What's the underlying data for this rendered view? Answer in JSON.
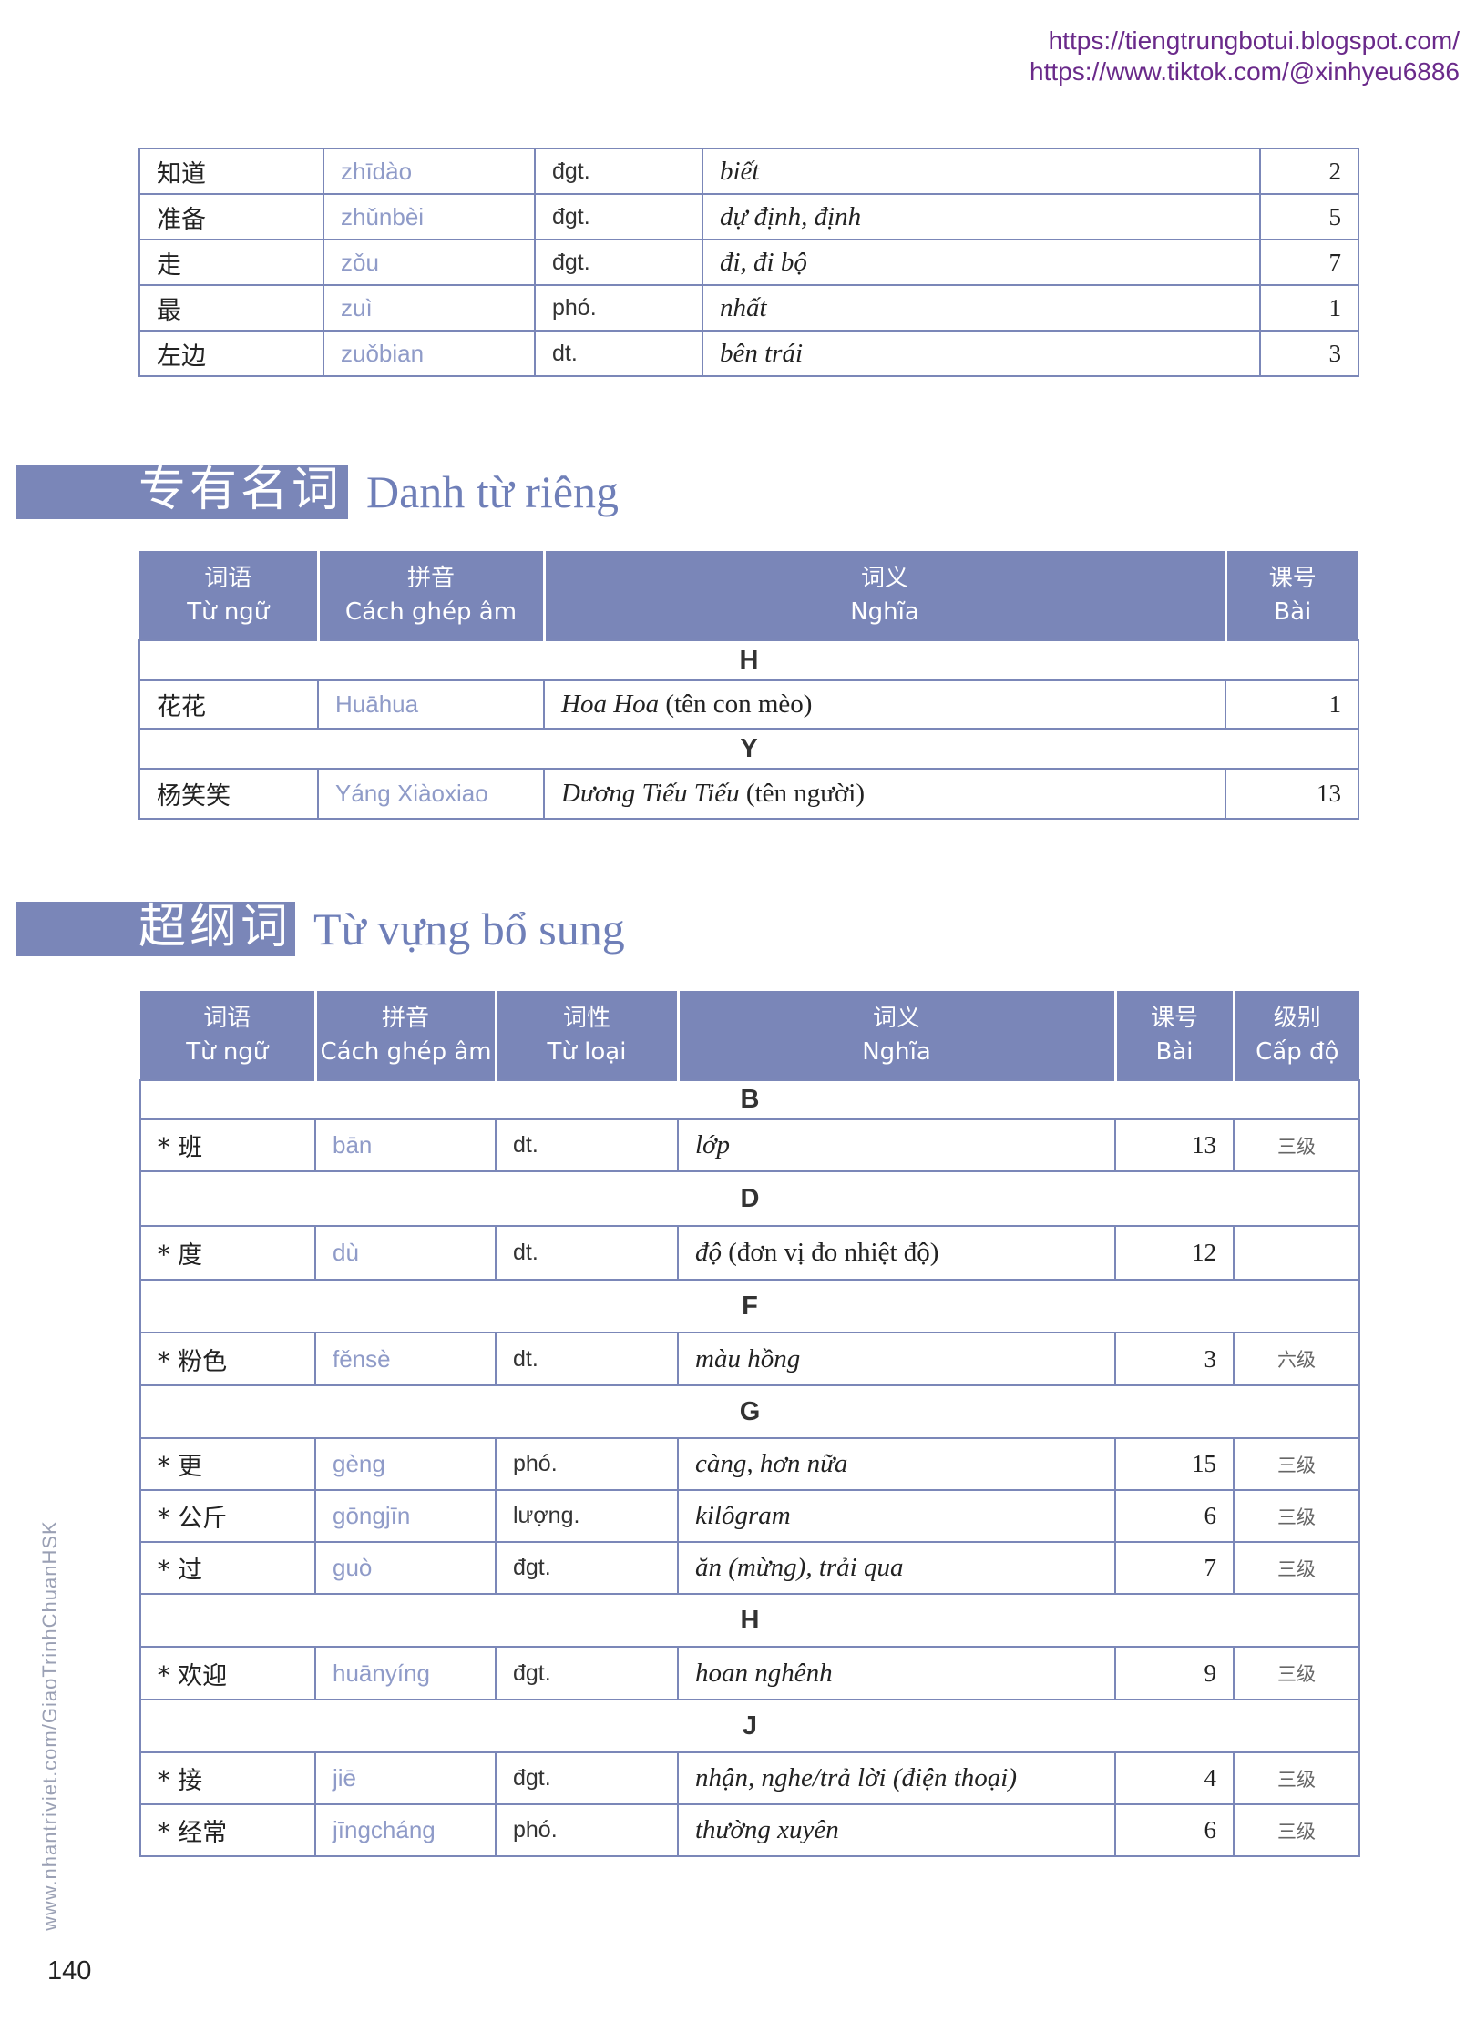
{
  "header_links": [
    "https://tiengtrungbotui.blogspot.com/",
    "https://www.tiktok.com/@xinhyeu6886"
  ],
  "vocab_top": {
    "rows": [
      {
        "word": "知道",
        "pinyin": "zhīdào",
        "pos": "đgt.",
        "meaning": "biết",
        "lesson": "2"
      },
      {
        "word": "准备",
        "pinyin": "zhǔnbèi",
        "pos": "đgt.",
        "meaning": "dự định, định",
        "lesson": "5"
      },
      {
        "word": "走",
        "pinyin": "zǒu",
        "pos": "đgt.",
        "meaning": "đi, đi bộ",
        "lesson": "7"
      },
      {
        "word": "最",
        "pinyin": "zuì",
        "pos": "phó.",
        "meaning": "nhất",
        "lesson": "1"
      },
      {
        "word": "左边",
        "pinyin": "zuǒbian",
        "pos": "dt.",
        "meaning": "bên trái",
        "lesson": "3"
      }
    ]
  },
  "proper_nouns": {
    "title_cn": "专有名词",
    "title_vi": "Danh từ riêng",
    "headers": [
      {
        "cn": "词语",
        "vi": "Từ ngữ"
      },
      {
        "cn": "拼音",
        "vi": "Cách ghép âm"
      },
      {
        "cn": "词义",
        "vi": "Nghĩa"
      },
      {
        "cn": "课号",
        "vi": "Bài"
      }
    ],
    "groups": [
      {
        "letter": "H",
        "rows": [
          {
            "word": "花花",
            "pinyin": "Huāhua",
            "meaning_it": "Hoa Hoa",
            "meaning_plain": " (tên con mèo)",
            "lesson": "1"
          }
        ]
      },
      {
        "letter": "Y",
        "rows": [
          {
            "word": "杨笑笑",
            "pinyin": "Yáng Xiàoxiao",
            "meaning_it": "Dương Tiếu Tiếu",
            "meaning_plain": " (tên người)",
            "lesson": "13"
          }
        ]
      }
    ]
  },
  "supplement": {
    "title_cn": "超纲词",
    "title_vi": "Từ vựng bổ sung",
    "headers": [
      {
        "cn": "词语",
        "vi": "Từ ngữ"
      },
      {
        "cn": "拼音",
        "vi": "Cách ghép âm"
      },
      {
        "cn": "词性",
        "vi": "Từ loại"
      },
      {
        "cn": "词义",
        "vi": "Nghĩa"
      },
      {
        "cn": "课号",
        "vi": "Bài"
      },
      {
        "cn": "级别",
        "vi": "Cấp độ"
      }
    ],
    "groups": [
      {
        "letter": "B",
        "rows": [
          {
            "word": "* 班",
            "pinyin": "bān",
            "pos": "dt.",
            "meaning": "lớp",
            "lesson": "13",
            "level": "三级"
          }
        ]
      },
      {
        "letter": "D",
        "rows": [
          {
            "word": "* 度",
            "pinyin": "dù",
            "pos": "dt.",
            "meaning_it": "độ",
            "meaning_plain": " (đơn vị đo nhiệt độ)",
            "lesson": "12",
            "level": ""
          }
        ]
      },
      {
        "letter": "F",
        "rows": [
          {
            "word": "* 粉色",
            "pinyin": "fěnsè",
            "pos": "dt.",
            "meaning": "màu hồng",
            "lesson": "3",
            "level": "六级"
          }
        ]
      },
      {
        "letter": "G",
        "rows": [
          {
            "word": "* 更",
            "pinyin": "gèng",
            "pos": "phó.",
            "meaning": "càng, hơn nữa",
            "lesson": "15",
            "level": "三级"
          },
          {
            "word": "* 公斤",
            "pinyin": "gōngjīn",
            "pos": "lượng.",
            "meaning": "kilôgram",
            "lesson": "6",
            "level": "三级"
          },
          {
            "word": "* 过",
            "pinyin": "guò",
            "pos": "đgt.",
            "meaning": "ăn (mừng), trải qua",
            "lesson": "7",
            "level": "三级"
          }
        ]
      },
      {
        "letter": "H",
        "rows": [
          {
            "word": "* 欢迎",
            "pinyin": "huānyíng",
            "pos": "đgt.",
            "meaning": "hoan nghênh",
            "lesson": "9",
            "level": "三级"
          }
        ]
      },
      {
        "letter": "J",
        "rows": [
          {
            "word": "* 接",
            "pinyin": "jiē",
            "pos": "đgt.",
            "meaning": "nhận, nghe/trả lời (điện thoại)",
            "lesson": "4",
            "level": "三级"
          },
          {
            "word": "* 经常",
            "pinyin": "jīngcháng",
            "pos": "phó.",
            "meaning": "thường xuyên",
            "lesson": "6",
            "level": "三级"
          }
        ]
      }
    ]
  },
  "side_text": "www.nhantriviet.com/GiaoTrinhChuanHSK",
  "page_number": "140"
}
